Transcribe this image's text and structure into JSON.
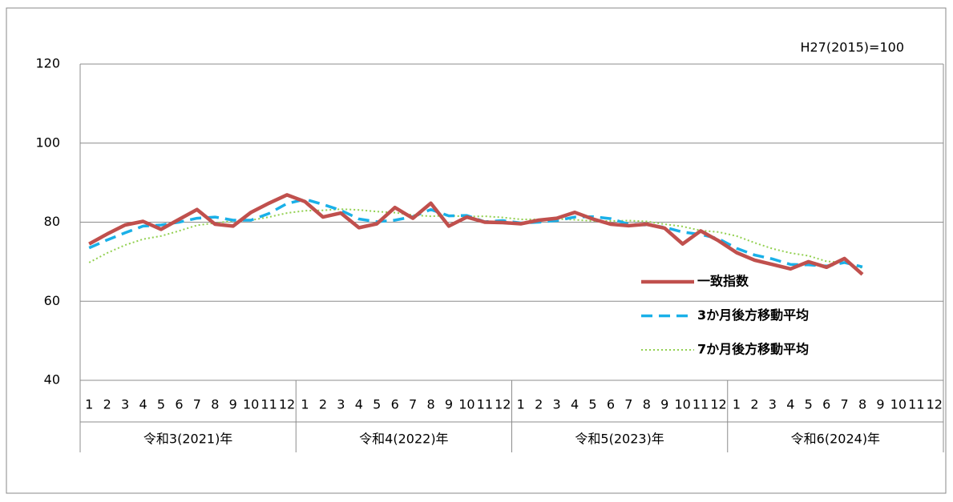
{
  "chart_data": {
    "type": "line",
    "annotation": "H27(2015)=100",
    "categories": [
      "1",
      "2",
      "3",
      "4",
      "5",
      "6",
      "7",
      "8",
      "9",
      "10",
      "11",
      "12",
      "1",
      "2",
      "3",
      "4",
      "5",
      "6",
      "7",
      "8",
      "9",
      "10",
      "11",
      "12",
      "1",
      "2",
      "3",
      "4",
      "5",
      "6",
      "7",
      "8",
      "9",
      "10",
      "11",
      "12",
      "1",
      "2",
      "3",
      "4",
      "5",
      "6",
      "7",
      "8",
      "9",
      "10",
      "11",
      "12"
    ],
    "groups": [
      "令和3(2021)年",
      "令和4(2022)年",
      "令和5(2023)年",
      "令和6(2024)年"
    ],
    "series": [
      {
        "name": "一致指数",
        "color": "#c0504d",
        "line_style": "solid",
        "values": [
          74.5,
          77,
          79.3,
          80.2,
          78.2,
          80.7,
          83.2,
          79.5,
          79,
          82.5,
          84.8,
          86.9,
          85.2,
          81.3,
          82.3,
          78.6,
          79.6,
          83.7,
          81,
          84.8,
          79,
          81.3,
          80,
          79.9,
          79.6,
          80.5,
          81,
          82.5,
          80.8,
          79.5,
          79.1,
          79.5,
          78.5,
          74.5,
          77.8,
          75.3,
          72.3,
          70.4,
          69.3,
          68.2,
          70,
          68.6,
          70.8,
          66.8,
          null,
          null,
          null,
          null
        ]
      },
      {
        "name": "3か月後方移動平均",
        "color": "#1ab0e8",
        "line_style": "dashed",
        "values": [
          73.5,
          75.5,
          77.3,
          79,
          79.3,
          80,
          81,
          81.3,
          80.5,
          80.5,
          82.2,
          84.7,
          85.8,
          84.5,
          83,
          80.8,
          80.1,
          80.5,
          81.4,
          83.2,
          81.6,
          81.7,
          80.1,
          80.4,
          79.8,
          80,
          80.4,
          81.3,
          81.4,
          80.9,
          79.5,
          79.3,
          78.7,
          77.5,
          76.9,
          75.8,
          73.4,
          71.7,
          70.7,
          69.3,
          69.2,
          68.9,
          69.8,
          68.7,
          null,
          null,
          null,
          null
        ]
      },
      {
        "name": "7か月後方移動平均",
        "color": "#92d050",
        "line_style": "dotted",
        "values": [
          69.8,
          72.2,
          74.2,
          75.7,
          76.5,
          77.8,
          79.2,
          79.8,
          80.3,
          80.5,
          81.3,
          82.3,
          82.9,
          83,
          83.3,
          83.1,
          82.7,
          82.4,
          81.8,
          81.5,
          81.7,
          81.4,
          81.5,
          81.2,
          80.7,
          80.7,
          80.8,
          80.6,
          80.3,
          80.3,
          80.4,
          80.2,
          79.5,
          78.9,
          77.9,
          77.5,
          76.5,
          74.8,
          73.3,
          72.2,
          71.5,
          70.1,
          69.8,
          68.4,
          null,
          null,
          null,
          null
        ]
      }
    ],
    "ylim": [
      40,
      120
    ],
    "yticks": [
      40,
      60,
      80,
      100,
      120
    ],
    "grid": true
  }
}
